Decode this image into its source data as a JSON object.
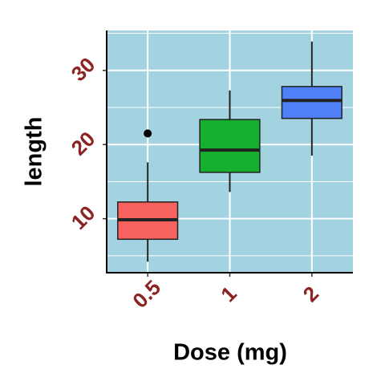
{
  "chart_data": {
    "type": "boxplot",
    "x_label": "Dose (mg)",
    "y_label": "length",
    "categories": [
      "0.5",
      "1",
      "2"
    ],
    "colors": [
      "#f8625e",
      "#15b02e",
      "#4f80f8"
    ],
    "boxes": [
      {
        "min": 4.2,
        "q1": 7.225,
        "median": 9.85,
        "q3": 12.25,
        "max": 17.6,
        "outliers": [
          21.5
        ]
      },
      {
        "min": 13.6,
        "q1": 16.25,
        "median": 19.25,
        "q3": 23.375,
        "max": 27.3,
        "outliers": []
      },
      {
        "min": 18.5,
        "q1": 23.525,
        "median": 25.95,
        "q3": 27.825,
        "max": 33.9,
        "outliers": []
      }
    ],
    "ylim": [
      2.715,
      35.385
    ],
    "yticks": [
      10,
      20,
      30
    ],
    "yminor": [
      5,
      15,
      25,
      35
    ],
    "grid": true,
    "panel_color": "#a3d2e1",
    "tick_label_color": "#8b2323"
  }
}
